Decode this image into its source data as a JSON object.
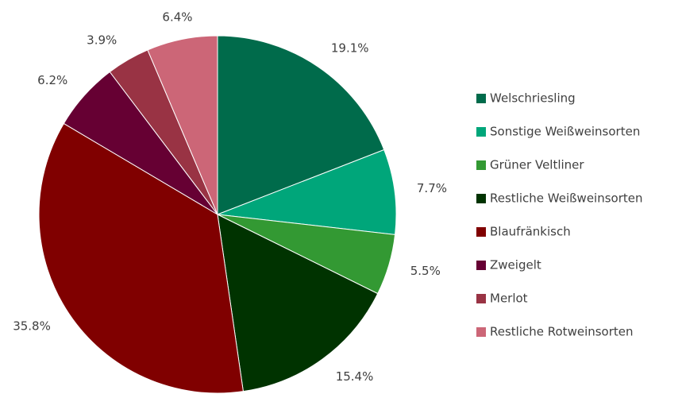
{
  "chart_data": {
    "type": "pie",
    "categories": [
      "Welschriesling",
      "Sonstige Weißweinsorten",
      "Grüner Veltliner",
      "Restliche Weißweinsorten",
      "Blaufränkisch",
      "Zweigelt",
      "Merlot",
      "Restliche Rotweinsorten"
    ],
    "values": [
      19.1,
      7.7,
      5.5,
      15.4,
      35.8,
      6.2,
      3.9,
      6.4
    ],
    "value_labels": [
      "19.1%",
      "7.7%",
      "5.5%",
      "15.4%",
      "35.8%",
      "6.2%",
      "3.9%",
      "6.4%"
    ],
    "colors": [
      "#006b4b",
      "#00a67a",
      "#339933",
      "#003300",
      "#800000",
      "#660033",
      "#993344",
      "#cc6677"
    ],
    "legend": "right"
  }
}
